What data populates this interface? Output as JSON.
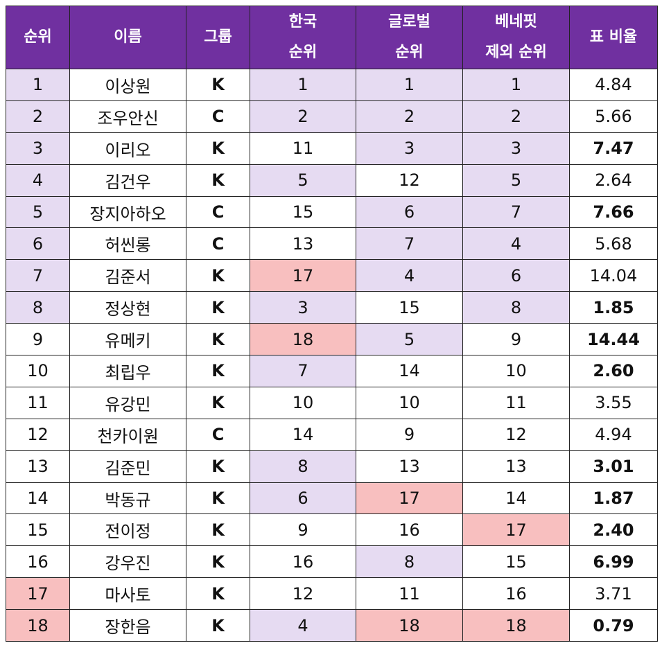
{
  "headers": [
    {
      "line1": "순위",
      "line2": ""
    },
    {
      "line1": "이름",
      "line2": ""
    },
    {
      "line1": "그룹",
      "line2": ""
    },
    {
      "line1": "한국",
      "line2": "순위"
    },
    {
      "line1": "글로벌",
      "line2": "순위"
    },
    {
      "line1": "베네핏",
      "line2": "제외 순위"
    },
    {
      "line1": "표 비율",
      "line2": ""
    }
  ],
  "colors": {
    "header_bg": "#7030a0",
    "lavender": "#e6dbf2",
    "salmon": "#f8bfbf",
    "group_K": "#1e9be0",
    "group_C": "#e53cb4",
    "ratio_pink": "#e53cb4",
    "ratio_blue": "#1fa7da"
  },
  "rows": [
    {
      "rank": "1",
      "rank_bg": "hl",
      "name": "이상원",
      "group": "K",
      "korea": "1",
      "korea_bg": "hl",
      "global": "1",
      "global_bg": "hl",
      "excl": "1",
      "excl_bg": "hl",
      "ratio": "4.84",
      "ratio_color": ""
    },
    {
      "rank": "2",
      "rank_bg": "hl",
      "name": "조우안신",
      "group": "C",
      "korea": "2",
      "korea_bg": "hl",
      "global": "2",
      "global_bg": "hl",
      "excl": "2",
      "excl_bg": "hl",
      "ratio": "5.66",
      "ratio_color": ""
    },
    {
      "rank": "3",
      "rank_bg": "hl",
      "name": "이리오",
      "group": "K",
      "korea": "11",
      "korea_bg": "",
      "global": "3",
      "global_bg": "hl",
      "excl": "3",
      "excl_bg": "hl",
      "ratio": "7.47",
      "ratio_color": "pink"
    },
    {
      "rank": "4",
      "rank_bg": "hl",
      "name": "김건우",
      "group": "K",
      "korea": "5",
      "korea_bg": "hl",
      "global": "12",
      "global_bg": "",
      "excl": "5",
      "excl_bg": "hl",
      "ratio": "2.64",
      "ratio_color": ""
    },
    {
      "rank": "5",
      "rank_bg": "hl",
      "name": "장지아하오",
      "group": "C",
      "korea": "15",
      "korea_bg": "",
      "global": "6",
      "global_bg": "hl",
      "excl": "7",
      "excl_bg": "hl",
      "ratio": "7.66",
      "ratio_color": "pink"
    },
    {
      "rank": "6",
      "rank_bg": "hl",
      "name": "허씬롱",
      "group": "C",
      "korea": "13",
      "korea_bg": "",
      "global": "7",
      "global_bg": "hl",
      "excl": "4",
      "excl_bg": "hl",
      "ratio": "5.68",
      "ratio_color": ""
    },
    {
      "rank": "7",
      "rank_bg": "hl",
      "name": "김준서",
      "group": "K",
      "korea": "17",
      "korea_bg": "rd",
      "global": "4",
      "global_bg": "hl",
      "excl": "6",
      "excl_bg": "hl",
      "ratio": "14.04",
      "ratio_color": ""
    },
    {
      "rank": "8",
      "rank_bg": "hl",
      "name": "정상현",
      "group": "K",
      "korea": "3",
      "korea_bg": "hl",
      "global": "15",
      "global_bg": "",
      "excl": "8",
      "excl_bg": "hl",
      "ratio": "1.85",
      "ratio_color": "blue"
    },
    {
      "rank": "9",
      "rank_bg": "",
      "name": "유메키",
      "group": "K",
      "korea": "18",
      "korea_bg": "rd",
      "global": "5",
      "global_bg": "hl",
      "excl": "9",
      "excl_bg": "",
      "ratio": "14.44",
      "ratio_color": "pink"
    },
    {
      "rank": "10",
      "rank_bg": "",
      "name": "최립우",
      "group": "K",
      "korea": "7",
      "korea_bg": "hl",
      "global": "14",
      "global_bg": "",
      "excl": "10",
      "excl_bg": "",
      "ratio": "2.60",
      "ratio_color": "blue"
    },
    {
      "rank": "11",
      "rank_bg": "",
      "name": "유강민",
      "group": "K",
      "korea": "10",
      "korea_bg": "",
      "global": "10",
      "global_bg": "",
      "excl": "11",
      "excl_bg": "",
      "ratio": "3.55",
      "ratio_color": ""
    },
    {
      "rank": "12",
      "rank_bg": "",
      "name": "천카이원",
      "group": "C",
      "korea": "14",
      "korea_bg": "",
      "global": "9",
      "global_bg": "",
      "excl": "12",
      "excl_bg": "",
      "ratio": "4.94",
      "ratio_color": ""
    },
    {
      "rank": "13",
      "rank_bg": "",
      "name": "김준민",
      "group": "K",
      "korea": "8",
      "korea_bg": "hl",
      "global": "13",
      "global_bg": "",
      "excl": "13",
      "excl_bg": "",
      "ratio": "3.01",
      "ratio_color": "pink"
    },
    {
      "rank": "14",
      "rank_bg": "",
      "name": "박동규",
      "group": "K",
      "korea": "6",
      "korea_bg": "hl",
      "global": "17",
      "global_bg": "rd",
      "excl": "14",
      "excl_bg": "",
      "ratio": "1.87",
      "ratio_color": "blue"
    },
    {
      "rank": "15",
      "rank_bg": "",
      "name": "전이정",
      "group": "K",
      "korea": "9",
      "korea_bg": "",
      "global": "16",
      "global_bg": "",
      "excl": "17",
      "excl_bg": "rd",
      "ratio": "2.40",
      "ratio_color": "blue"
    },
    {
      "rank": "16",
      "rank_bg": "",
      "name": "강우진",
      "group": "K",
      "korea": "16",
      "korea_bg": "",
      "global": "8",
      "global_bg": "hl",
      "excl": "15",
      "excl_bg": "",
      "ratio": "6.99",
      "ratio_color": "pink"
    },
    {
      "rank": "17",
      "rank_bg": "rd",
      "name": "마사토",
      "group": "K",
      "korea": "12",
      "korea_bg": "",
      "global": "11",
      "global_bg": "",
      "excl": "16",
      "excl_bg": "",
      "ratio": "3.71",
      "ratio_color": ""
    },
    {
      "rank": "18",
      "rank_bg": "rd",
      "name": "장한음",
      "group": "K",
      "korea": "4",
      "korea_bg": "hl",
      "global": "18",
      "global_bg": "rd",
      "excl": "18",
      "excl_bg": "rd",
      "ratio": "0.79",
      "ratio_color": "blue"
    }
  ]
}
